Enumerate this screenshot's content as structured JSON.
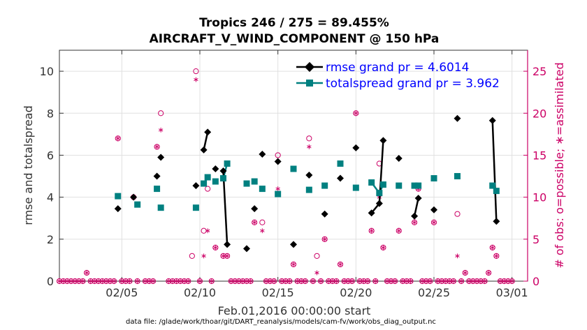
{
  "chart_data": {
    "type": "line",
    "title_line1": "Tropics 246 / 275 = 89.455%",
    "title_line2": "AIRCRAFT_V_WIND_COMPONENT @ 150 hPa",
    "xlabel": "Feb.01,2016 00:00:00 start",
    "ylabel_left": "rmse and totalspread",
    "ylabel_right": "# of obs: o=possible; ∗=assimilated",
    "footer": "data file: /glade/work/thoar/git/DART_reanalysis/models/cam-fv/work/obs_diag_output.nc",
    "xlim": [
      1,
      31
    ],
    "ylim_left": [
      0,
      11
    ],
    "ylim_right": [
      0,
      27.5
    ],
    "x_ticks": [
      5,
      10,
      15,
      20,
      25,
      30
    ],
    "x_tick_labels": [
      "02/05",
      "02/10",
      "02/15",
      "02/20",
      "02/25",
      "03/01"
    ],
    "y_ticks_left": [
      0,
      2,
      4,
      6,
      8,
      10
    ],
    "y_ticks_right": [
      0,
      5,
      10,
      15,
      20,
      25
    ],
    "grid": true,
    "legend": {
      "placement": "top-right",
      "entries": [
        {
          "label": "rmse grand pr = 4.6014"
        },
        {
          "label": "totalspread grand pr = 3.962"
        }
      ]
    },
    "colors": {
      "rmse": "#000000",
      "totalspread": "#008080",
      "obs": "#cc0066",
      "legend_text": "#0000ff",
      "grid": "#e0e0e0"
    },
    "rmse": [
      [
        4.75,
        3.45
      ],
      [
        5.75,
        4.0
      ],
      [
        7.25,
        5.0
      ],
      [
        7.5,
        5.9
      ],
      [
        9.75,
        4.55
      ],
      [
        10.25,
        6.25
      ],
      [
        10.5,
        7.1
      ],
      [
        11.0,
        5.35
      ],
      [
        11.5,
        5.25
      ],
      [
        11.75,
        1.75
      ],
      [
        13.0,
        1.55
      ],
      [
        13.5,
        3.45
      ],
      [
        14.0,
        6.05
      ],
      [
        15.0,
        5.7
      ],
      [
        16.0,
        1.75
      ],
      [
        17.0,
        5.05
      ],
      [
        18.0,
        3.2
      ],
      [
        19.0,
        4.9
      ],
      [
        20.0,
        6.35
      ],
      [
        21.0,
        3.25
      ],
      [
        21.5,
        3.7
      ],
      [
        21.75,
        6.7
      ],
      [
        22.75,
        5.85
      ],
      [
        23.75,
        3.1
      ],
      [
        24.0,
        3.95
      ],
      [
        25.0,
        3.4
      ],
      [
        26.5,
        7.75
      ],
      [
        28.75,
        7.65
      ],
      [
        29.0,
        2.85
      ]
    ],
    "totalspread": [
      [
        4.75,
        4.05
      ],
      [
        6.0,
        3.65
      ],
      [
        7.25,
        4.4
      ],
      [
        7.5,
        3.5
      ],
      [
        9.75,
        3.5
      ],
      [
        10.25,
        4.65
      ],
      [
        10.5,
        4.95
      ],
      [
        11.0,
        4.75
      ],
      [
        11.5,
        4.9
      ],
      [
        11.75,
        5.6
      ],
      [
        13.0,
        4.65
      ],
      [
        13.5,
        4.75
      ],
      [
        14.0,
        4.4
      ],
      [
        15.0,
        4.15
      ],
      [
        16.0,
        5.35
      ],
      [
        17.0,
        4.35
      ],
      [
        18.0,
        4.55
      ],
      [
        19.0,
        5.6
      ],
      [
        20.0,
        4.45
      ],
      [
        21.0,
        4.7
      ],
      [
        21.5,
        4.2
      ],
      [
        21.75,
        4.6
      ],
      [
        22.75,
        4.55
      ],
      [
        23.75,
        4.55
      ],
      [
        24.0,
        4.55
      ],
      [
        25.0,
        4.9
      ],
      [
        26.5,
        5.0
      ],
      [
        28.75,
        4.55
      ],
      [
        29.0,
        4.3
      ]
    ],
    "obs_possible": [
      [
        1.0,
        0
      ],
      [
        1.25,
        0
      ],
      [
        1.5,
        0
      ],
      [
        1.75,
        0
      ],
      [
        2.0,
        0
      ],
      [
        2.25,
        0
      ],
      [
        2.5,
        0
      ],
      [
        2.75,
        1
      ],
      [
        3.0,
        0
      ],
      [
        3.25,
        0
      ],
      [
        3.5,
        0
      ],
      [
        3.75,
        0
      ],
      [
        4.0,
        0
      ],
      [
        4.25,
        0
      ],
      [
        4.5,
        0
      ],
      [
        4.75,
        17
      ],
      [
        5.0,
        0
      ],
      [
        5.25,
        0
      ],
      [
        5.5,
        0
      ],
      [
        5.75,
        10
      ],
      [
        6.0,
        0
      ],
      [
        6.5,
        0
      ],
      [
        6.75,
        0
      ],
      [
        7.0,
        0
      ],
      [
        7.25,
        16
      ],
      [
        7.5,
        20
      ],
      [
        8.0,
        0
      ],
      [
        8.25,
        0
      ],
      [
        8.5,
        0
      ],
      [
        8.75,
        0
      ],
      [
        9.0,
        0
      ],
      [
        9.25,
        0
      ],
      [
        9.5,
        3
      ],
      [
        9.75,
        25
      ],
      [
        10.0,
        0
      ],
      [
        10.25,
        6
      ],
      [
        10.5,
        11
      ],
      [
        10.75,
        0
      ],
      [
        11.0,
        4
      ],
      [
        11.5,
        3
      ],
      [
        11.75,
        3
      ],
      [
        12.0,
        0
      ],
      [
        12.25,
        0
      ],
      [
        12.5,
        0
      ],
      [
        12.75,
        0
      ],
      [
        13.0,
        0
      ],
      [
        13.25,
        0
      ],
      [
        13.5,
        7
      ],
      [
        14.0,
        7
      ],
      [
        14.25,
        0
      ],
      [
        14.5,
        0
      ],
      [
        14.75,
        0
      ],
      [
        15.0,
        15
      ],
      [
        15.25,
        0
      ],
      [
        15.5,
        0
      ],
      [
        15.75,
        0
      ],
      [
        16.0,
        2
      ],
      [
        16.25,
        0
      ],
      [
        16.5,
        0
      ],
      [
        16.75,
        0
      ],
      [
        17.0,
        17
      ],
      [
        17.25,
        0
      ],
      [
        17.5,
        3
      ],
      [
        17.75,
        0
      ],
      [
        18.0,
        5
      ],
      [
        18.25,
        0
      ],
      [
        18.5,
        0
      ],
      [
        18.75,
        0
      ],
      [
        19.0,
        2
      ],
      [
        19.25,
        0
      ],
      [
        19.5,
        0
      ],
      [
        19.75,
        0
      ],
      [
        20.0,
        20
      ],
      [
        20.25,
        0
      ],
      [
        20.5,
        0
      ],
      [
        20.75,
        0
      ],
      [
        21.0,
        6
      ],
      [
        21.25,
        0
      ],
      [
        21.5,
        14
      ],
      [
        21.75,
        4
      ],
      [
        22.0,
        0
      ],
      [
        22.25,
        0
      ],
      [
        22.5,
        0
      ],
      [
        22.75,
        6
      ],
      [
        23.0,
        0
      ],
      [
        23.25,
        0
      ],
      [
        23.5,
        0
      ],
      [
        23.75,
        7
      ],
      [
        24.0,
        11
      ],
      [
        24.25,
        0
      ],
      [
        24.5,
        0
      ],
      [
        24.75,
        0
      ],
      [
        25.0,
        7
      ],
      [
        25.25,
        0
      ],
      [
        25.5,
        0
      ],
      [
        25.75,
        0
      ],
      [
        26.0,
        0
      ],
      [
        26.25,
        0
      ],
      [
        26.5,
        8
      ],
      [
        26.75,
        0
      ],
      [
        27.0,
        1
      ],
      [
        27.25,
        0
      ],
      [
        27.5,
        0
      ],
      [
        27.75,
        0
      ],
      [
        28.0,
        0
      ],
      [
        28.25,
        0
      ],
      [
        28.5,
        1
      ],
      [
        28.75,
        4
      ],
      [
        29.0,
        3
      ],
      [
        29.25,
        0
      ],
      [
        29.5,
        0
      ],
      [
        29.75,
        0
      ],
      [
        30.0,
        0
      ]
    ],
    "obs_assimilated": [
      [
        1.0,
        0
      ],
      [
        1.25,
        0
      ],
      [
        1.5,
        0
      ],
      [
        1.75,
        0
      ],
      [
        2.0,
        0
      ],
      [
        2.25,
        0
      ],
      [
        2.5,
        0
      ],
      [
        2.75,
        1
      ],
      [
        3.0,
        0
      ],
      [
        3.25,
        0
      ],
      [
        3.5,
        0
      ],
      [
        3.75,
        0
      ],
      [
        4.0,
        0
      ],
      [
        4.25,
        0
      ],
      [
        4.5,
        0
      ],
      [
        4.75,
        17
      ],
      [
        5.0,
        0
      ],
      [
        5.25,
        0
      ],
      [
        5.5,
        0
      ],
      [
        5.75,
        10
      ],
      [
        6.0,
        0
      ],
      [
        6.5,
        0
      ],
      [
        6.75,
        0
      ],
      [
        7.0,
        0
      ],
      [
        7.25,
        16
      ],
      [
        7.5,
        18
      ],
      [
        8.0,
        0
      ],
      [
        8.25,
        0
      ],
      [
        8.5,
        0
      ],
      [
        8.75,
        0
      ],
      [
        9.0,
        0
      ],
      [
        9.25,
        0
      ],
      [
        9.75,
        24
      ],
      [
        10.0,
        0
      ],
      [
        10.25,
        3
      ],
      [
        10.5,
        6
      ],
      [
        10.75,
        0
      ],
      [
        11.0,
        4
      ],
      [
        11.5,
        3
      ],
      [
        11.75,
        3
      ],
      [
        12.0,
        0
      ],
      [
        12.25,
        0
      ],
      [
        12.5,
        0
      ],
      [
        12.75,
        0
      ],
      [
        13.0,
        0
      ],
      [
        13.25,
        0
      ],
      [
        13.5,
        7
      ],
      [
        14.0,
        6
      ],
      [
        14.25,
        0
      ],
      [
        14.5,
        0
      ],
      [
        14.75,
        0
      ],
      [
        15.0,
        11
      ],
      [
        15.25,
        0
      ],
      [
        15.5,
        0
      ],
      [
        15.75,
        0
      ],
      [
        16.0,
        2
      ],
      [
        16.25,
        0
      ],
      [
        16.5,
        0
      ],
      [
        16.75,
        0
      ],
      [
        17.0,
        16
      ],
      [
        17.25,
        0
      ],
      [
        17.5,
        1
      ],
      [
        17.75,
        0
      ],
      [
        18.0,
        5
      ],
      [
        18.25,
        0
      ],
      [
        18.5,
        0
      ],
      [
        18.75,
        0
      ],
      [
        19.0,
        2
      ],
      [
        19.25,
        0
      ],
      [
        19.5,
        0
      ],
      [
        19.75,
        0
      ],
      [
        20.0,
        20
      ],
      [
        20.25,
        0
      ],
      [
        20.5,
        0
      ],
      [
        20.75,
        0
      ],
      [
        21.0,
        6
      ],
      [
        21.25,
        0
      ],
      [
        21.5,
        10
      ],
      [
        21.75,
        4
      ],
      [
        22.0,
        0
      ],
      [
        22.25,
        0
      ],
      [
        22.5,
        0
      ],
      [
        22.75,
        6
      ],
      [
        23.0,
        0
      ],
      [
        23.25,
        0
      ],
      [
        23.5,
        0
      ],
      [
        23.75,
        7
      ],
      [
        24.0,
        11
      ],
      [
        24.25,
        0
      ],
      [
        24.5,
        0
      ],
      [
        24.75,
        0
      ],
      [
        25.0,
        7
      ],
      [
        25.25,
        0
      ],
      [
        25.5,
        0
      ],
      [
        25.75,
        0
      ],
      [
        26.0,
        0
      ],
      [
        26.25,
        0
      ],
      [
        26.5,
        3
      ],
      [
        26.75,
        0
      ],
      [
        27.0,
        1
      ],
      [
        27.25,
        0
      ],
      [
        27.5,
        0
      ],
      [
        27.75,
        0
      ],
      [
        28.0,
        0
      ],
      [
        28.25,
        0
      ],
      [
        28.5,
        1
      ],
      [
        28.75,
        4
      ],
      [
        29.0,
        3
      ],
      [
        29.25,
        0
      ],
      [
        29.5,
        0
      ],
      [
        29.75,
        0
      ],
      [
        30.0,
        0
      ]
    ],
    "rmse_segments": [
      [
        10.25,
        10.5
      ],
      [
        11.5,
        11.75
      ],
      [
        21.0,
        21.5
      ],
      [
        21.5,
        21.75
      ],
      [
        23.75,
        24.0
      ],
      [
        28.75,
        29.0
      ]
    ],
    "spread_segments": [
      [
        10.25,
        10.5
      ],
      [
        11.5,
        11.75
      ],
      [
        21.0,
        21.5
      ],
      [
        21.5,
        21.75
      ],
      [
        23.75,
        24.0
      ],
      [
        28.75,
        29.0
      ]
    ]
  }
}
